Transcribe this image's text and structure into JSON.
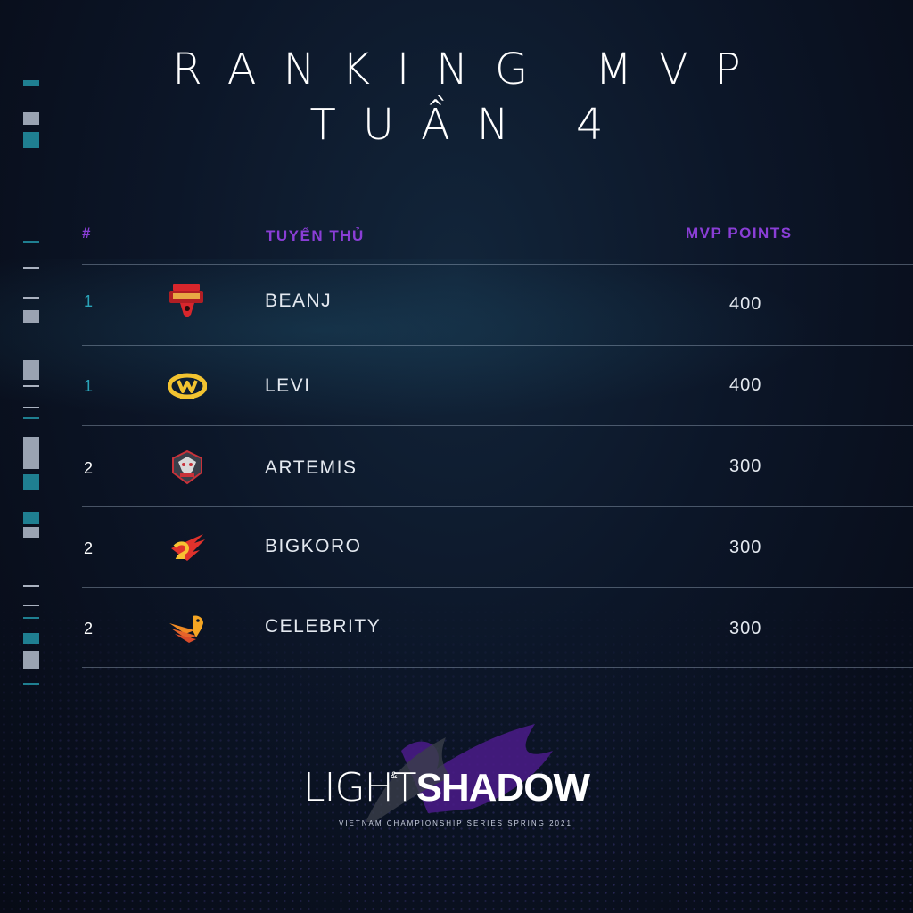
{
  "title": {
    "line1": "RANKING MVP",
    "line2": "TUẦN 4"
  },
  "headers": {
    "rank": "#",
    "player": "TUYỂN THỦ",
    "points": "MVP POINTS"
  },
  "colors": {
    "header": "#8a3ed6",
    "rank_top": "#2aa3b8",
    "rank_other": "#ffffff",
    "background": "#0c1628"
  },
  "rows": [
    {
      "rank": "1",
      "player": "BEANJ",
      "points": "400",
      "logo_icon": "saigon-buffalo-logo-icon"
    },
    {
      "rank": "1",
      "player": "LEVI",
      "points": "400",
      "logo_icon": "gam-esports-logo-icon"
    },
    {
      "rank": "2",
      "player": "ARTEMIS",
      "points": "300",
      "logo_icon": "team-flash-logo-icon"
    },
    {
      "rank": "2",
      "player": "BIGKORO",
      "points": "300",
      "logo_icon": "team-secret-logo-icon"
    },
    {
      "rank": "2",
      "player": "CELEBRITY",
      "points": "300",
      "logo_icon": "cerberus-esports-logo-icon"
    }
  ],
  "brand": {
    "light": "LIGHT",
    "amp": "&",
    "shadow": "SHADOW",
    "subtitle": "VIETNAM CHAMPIONSHIP SERIES SPRING 2021"
  }
}
